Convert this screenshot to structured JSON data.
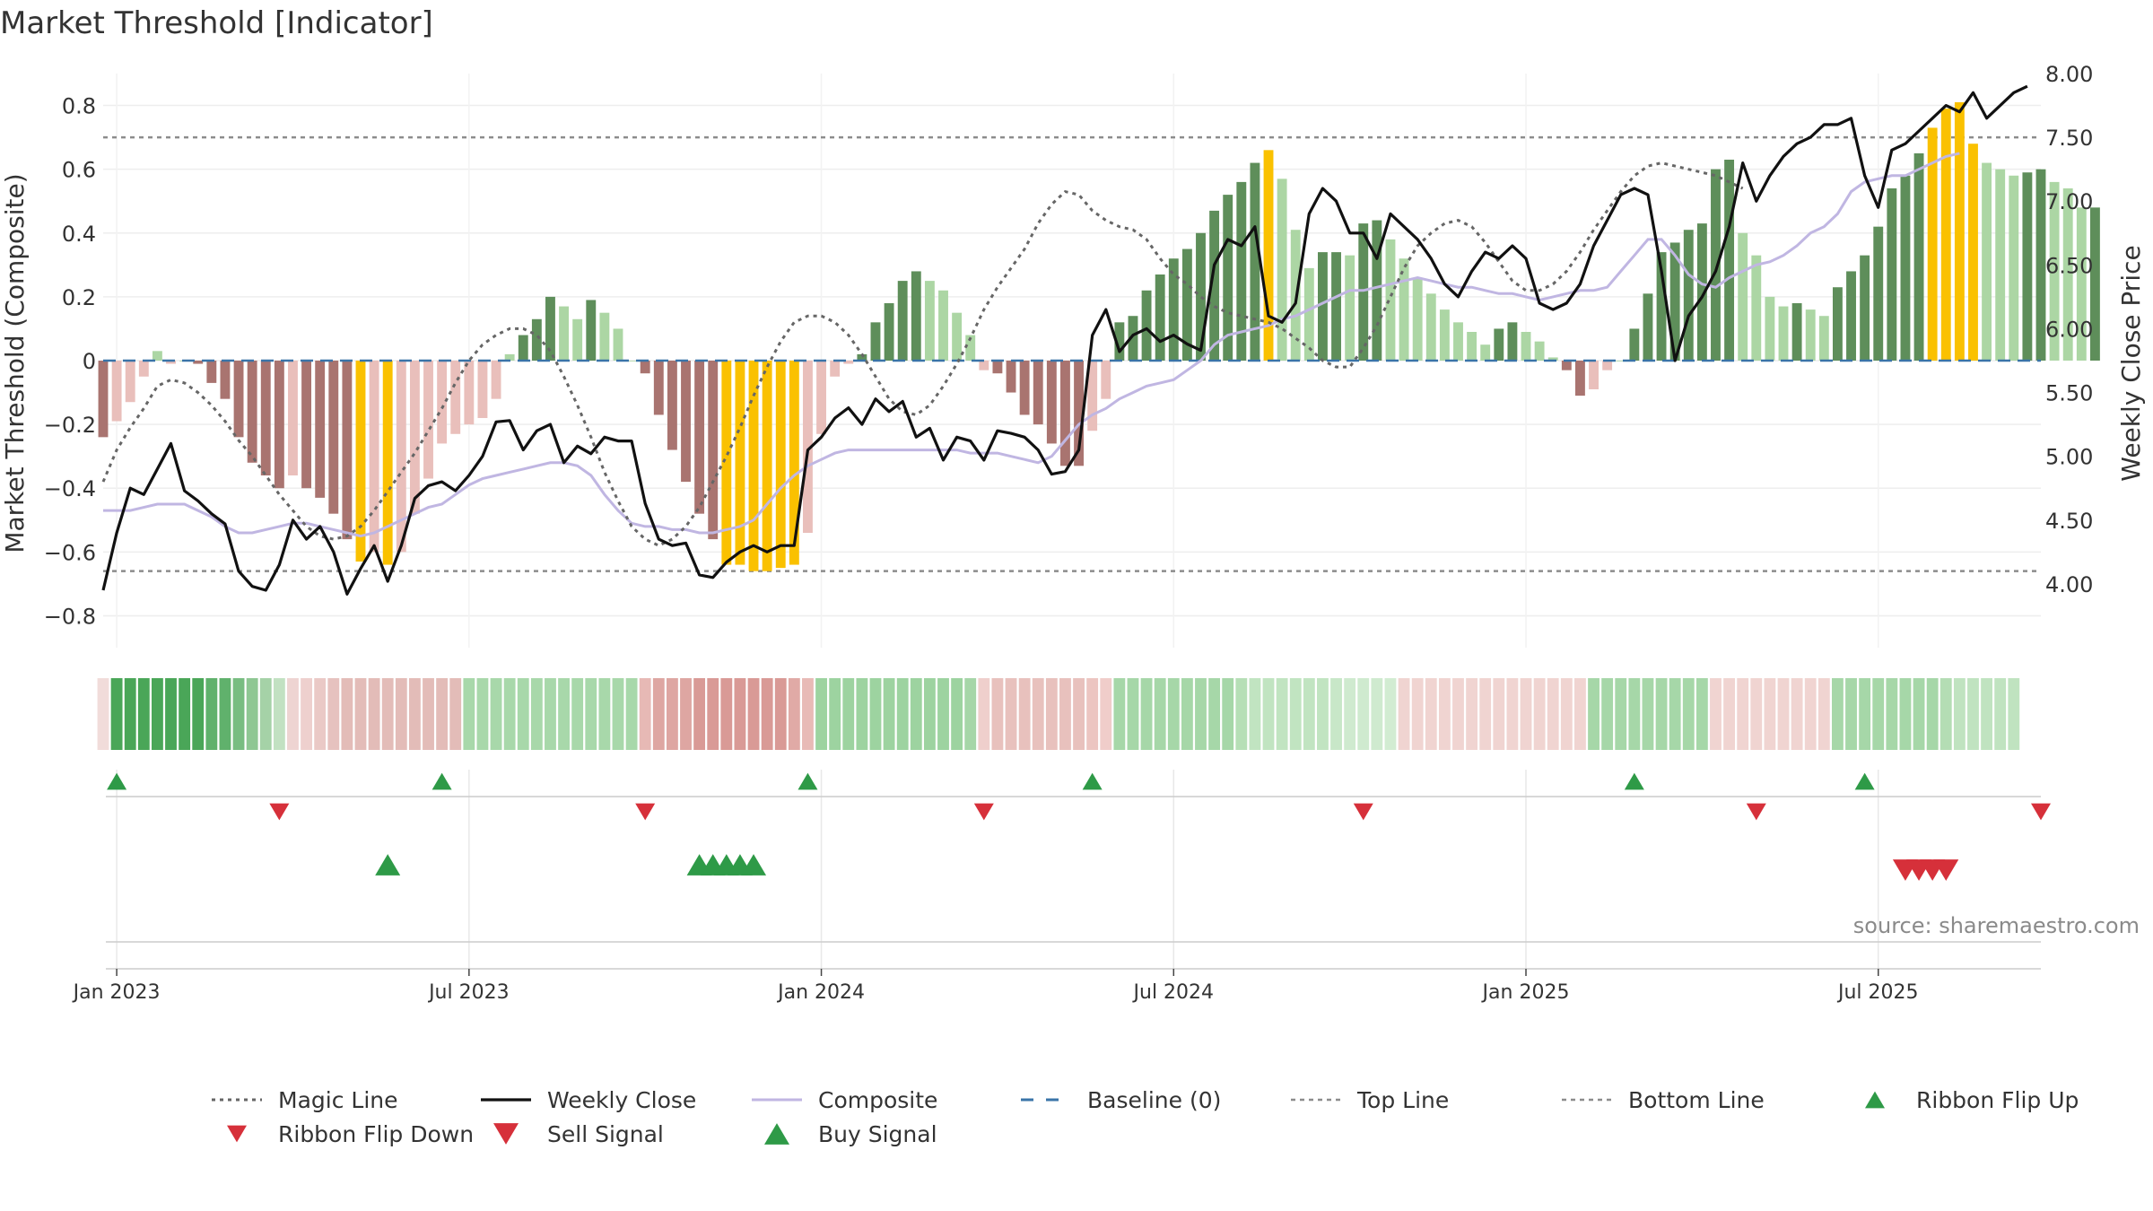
{
  "chart_data": {
    "type": "bar",
    "title": "Market Threshold [Indicator]",
    "ylabel_left": "Market Threshold (Composite)",
    "ylabel_right": "Weekly Close Price",
    "source": "source: sharemaestro.com",
    "ylim_left": [
      -0.9,
      0.9
    ],
    "ylim_right": [
      3.5,
      8.0
    ],
    "left_ticks": [
      {
        "v": 0.8,
        "label": "0.8"
      },
      {
        "v": 0.6,
        "label": "0.6"
      },
      {
        "v": 0.4,
        "label": "0.4"
      },
      {
        "v": 0.2,
        "label": "0.2"
      },
      {
        "v": 0,
        "label": "0"
      },
      {
        "v": -0.2,
        "label": "−0.2"
      },
      {
        "v": -0.4,
        "label": "−0.4"
      },
      {
        "v": -0.6,
        "label": "−0.6"
      },
      {
        "v": -0.8,
        "label": "−0.8"
      }
    ],
    "right_ticks": [
      {
        "v": 8.0,
        "label": "8.00"
      },
      {
        "v": 7.5,
        "label": "7.50"
      },
      {
        "v": 7.0,
        "label": "7.00"
      },
      {
        "v": 6.5,
        "label": "6.50"
      },
      {
        "v": 6.0,
        "label": "6.00"
      },
      {
        "v": 5.5,
        "label": "5.50"
      },
      {
        "v": 5.0,
        "label": "5.00"
      },
      {
        "v": 4.5,
        "label": "4.50"
      },
      {
        "v": 4.0,
        "label": "4.00"
      }
    ],
    "x_ticks": [
      {
        "week": 1,
        "label": "Jan 2023"
      },
      {
        "week": 27,
        "label": "Jul 2023"
      },
      {
        "week": 53,
        "label": "Jan 2024"
      },
      {
        "week": 79,
        "label": "Jul 2024"
      },
      {
        "week": 105,
        "label": "Jan 2025"
      },
      {
        "week": 131,
        "label": "Jul 2025"
      }
    ],
    "top_line": 0.7,
    "bottom_line": -0.66,
    "baseline": 0,
    "week_range": [
      0,
      143
    ],
    "composite_bars": [
      -0.24,
      -0.19,
      -0.13,
      -0.05,
      0.03,
      -0.01,
      0.0,
      -0.01,
      -0.07,
      -0.12,
      -0.24,
      -0.32,
      -0.36,
      -0.4,
      -0.36,
      -0.4,
      -0.43,
      -0.48,
      -0.56,
      -0.63,
      -0.6,
      -0.64,
      -0.6,
      -0.48,
      -0.37,
      -0.26,
      -0.23,
      -0.2,
      -0.18,
      -0.12,
      0.02,
      0.08,
      0.13,
      0.2,
      0.17,
      0.13,
      0.19,
      0.15,
      0.1,
      0.0,
      -0.04,
      -0.17,
      -0.28,
      -0.38,
      -0.48,
      -0.56,
      -0.64,
      -0.64,
      -0.66,
      -0.66,
      -0.65,
      -0.64,
      -0.54,
      -0.23,
      -0.05,
      -0.01,
      0.02,
      0.12,
      0.18,
      0.25,
      0.28,
      0.25,
      0.22,
      0.15,
      0.08,
      -0.03,
      -0.04,
      -0.1,
      -0.17,
      -0.2,
      -0.26,
      -0.33,
      -0.33,
      -0.22,
      -0.12,
      0.12,
      0.14,
      0.22,
      0.27,
      0.32,
      0.35,
      0.4,
      0.47,
      0.52,
      0.56,
      0.62,
      0.66,
      0.57,
      0.41,
      0.29,
      0.34,
      0.34,
      0.33,
      0.43,
      0.44,
      0.38,
      0.32,
      0.26,
      0.21,
      0.16,
      0.12,
      0.09,
      0.05,
      0.1,
      0.12,
      0.09,
      0.06,
      0.01,
      -0.03,
      -0.11,
      -0.09,
      -0.03,
      0.0,
      0.1,
      0.21,
      0.34,
      0.37,
      0.41,
      0.43,
      0.6,
      0.63,
      0.4,
      0.33,
      0.2,
      0.17,
      0.18,
      0.16,
      0.14,
      0.23,
      0.28,
      0.33,
      0.42,
      0.54,
      0.58,
      0.65,
      0.73,
      0.79,
      0.81,
      0.68,
      0.62,
      0.6,
      0.58,
      0.59,
      0.6,
      0.56,
      0.54,
      0.48,
      0.48
    ],
    "colors": {
      "pos_strong": "#5e8e5a",
      "pos_weak": "#acd6a4",
      "neg_strong": "#a97470",
      "neg_weak": "#e9bfbb",
      "extreme": "#fac100",
      "black": "#111111",
      "composite_line": "#c0b6e2",
      "magic": "#666666",
      "baseline": "#3a74a8",
      "buy": "#2e9a47",
      "sell": "#d6303a"
    },
    "ribbon_colors": [
      "#f1dcda",
      "#4aa658",
      "#4aa658",
      "#4aa658",
      "#4aa658",
      "#4aa658",
      "#4aa658",
      "#4aa658",
      "#60b16c",
      "#60b16c",
      "#78bd81",
      "#8ec793",
      "#a5d2a7",
      "#c2e1c2",
      "#eed4d2",
      "#eed0ce",
      "#eac9c6",
      "#e6c2bf",
      "#e3bcb8",
      "#e3bcb8",
      "#e3bcb8",
      "#e3bcb8",
      "#e3bcb8",
      "#e3bcb8",
      "#e3bcb8",
      "#e3bcb8",
      "#e3bcb8",
      "#a8d8aa",
      "#a8d8aa",
      "#a8d8aa",
      "#a8d8aa",
      "#a8d8aa",
      "#a8d8aa",
      "#a8d8aa",
      "#a8d8aa",
      "#a8d8aa",
      "#a8d8aa",
      "#a8d8aa",
      "#a8d8aa",
      "#a8d8aa",
      "#e7b9b5",
      "#dea6a2",
      "#dea6a2",
      "#dea6a2",
      "#d99a96",
      "#d99a96",
      "#d99a96",
      "#d99a96",
      "#d99a96",
      "#d99a96",
      "#d99a96",
      "#e0aaa6",
      "#e8bab6",
      "#9dd3a0",
      "#9dd3a0",
      "#9dd3a0",
      "#9dd3a0",
      "#9dd3a0",
      "#9dd3a0",
      "#9dd3a0",
      "#9dd3a0",
      "#9dd3a0",
      "#9dd3a0",
      "#9dd3a0",
      "#a6d6a8",
      "#efcfcc",
      "#e8c1bd",
      "#e8c1bd",
      "#e8c1bd",
      "#e8c1bd",
      "#e8c1bd",
      "#e8c1bd",
      "#e8c1bd",
      "#ecc5c1",
      "#f0cdca",
      "#a6d7a8",
      "#a6d7a8",
      "#a6d7a8",
      "#a6d7a8",
      "#a6d7a8",
      "#a6d7a8",
      "#a6d7a8",
      "#a6d7a8",
      "#a6d7a8",
      "#b6dfb6",
      "#c1e4c1",
      "#c1e4c1",
      "#c1e4c1",
      "#c1e4c1",
      "#c1e4c1",
      "#c1e4c1",
      "#c8e7c8",
      "#cfeacf",
      "#cfeacf",
      "#cfeacf",
      "#d2ecd2",
      "#f0d4d1",
      "#f0d4d1",
      "#f0d4d1",
      "#f0d4d1",
      "#f0d4d1",
      "#f0d4d1",
      "#f0d4d1",
      "#f0d4d1",
      "#f0d4d1",
      "#f0d4d1",
      "#f0d4d1",
      "#f0d4d1",
      "#f0d4d1",
      "#f0d4d1",
      "#a6d7a8",
      "#a6d7a8",
      "#a6d7a8",
      "#a6d7a8",
      "#a6d7a8",
      "#a6d7a8",
      "#a6d7a8",
      "#a6d7a8",
      "#a6d7a8",
      "#f0d4d1",
      "#f0d4d1",
      "#f0d4d1",
      "#f0d4d1",
      "#f0d4d1",
      "#f0d4d1",
      "#f0d4d1",
      "#f0d4d1",
      "#f0d4d1",
      "#a6d7a8",
      "#a6d7a8",
      "#a6d7a8",
      "#a6d7a8",
      "#a6d7a8",
      "#a6d7a8",
      "#a6d7a8",
      "#a6d7a8",
      "#b4ddb4",
      "#c0e3c0",
      "#c0e3c0",
      "#c0e3c0",
      "#c0e3c0",
      "#c0e3c0"
    ],
    "ribbon_flip_up": [
      1,
      25,
      52,
      73,
      113,
      130
    ],
    "ribbon_flip_down": [
      13,
      40,
      65,
      93,
      122,
      143
    ],
    "buy_signals": [
      21,
      44,
      45,
      46,
      47,
      48
    ],
    "sell_signals": [
      133,
      134,
      135,
      136
    ],
    "series": [
      {
        "name": "Weekly Close",
        "values": [
          3.95,
          4.4,
          4.75,
          4.7,
          4.9,
          5.1,
          4.73,
          4.65,
          4.55,
          4.47,
          4.1,
          3.98,
          3.95,
          4.15,
          4.5,
          4.35,
          4.45,
          4.25,
          3.92,
          4.12,
          4.3,
          4.02,
          4.3,
          4.67,
          4.77,
          4.8,
          4.73,
          4.85,
          5.0,
          5.27,
          5.28,
          5.05,
          5.2,
          5.25,
          4.95,
          5.08,
          5.02,
          5.15,
          5.12,
          5.12,
          4.63,
          4.35,
          4.3,
          4.32,
          4.07,
          4.05,
          4.17,
          4.25,
          4.3,
          4.25,
          4.3,
          4.3,
          5.05,
          5.15,
          5.3,
          5.38,
          5.25,
          5.45,
          5.35,
          5.43,
          5.15,
          5.22,
          4.97,
          5.15,
          5.12,
          4.97,
          5.2,
          5.18,
          5.15,
          5.05,
          4.86,
          4.88,
          5.05,
          5.95,
          6.15,
          5.82,
          5.95,
          6.0,
          5.9,
          5.95,
          5.88,
          5.83,
          6.5,
          6.7,
          6.65,
          6.8,
          6.1,
          6.05,
          6.2,
          6.9,
          7.1,
          7.0,
          6.75,
          6.75,
          6.55,
          6.9,
          6.8,
          6.7,
          6.55,
          6.35,
          6.25,
          6.45,
          6.6,
          6.55,
          6.65,
          6.55,
          6.2,
          6.15,
          6.2,
          6.35,
          6.65,
          6.85,
          7.05,
          7.1,
          7.05,
          6.45,
          5.75,
          6.1,
          6.25,
          6.45,
          6.8,
          7.3,
          7.0,
          7.2,
          7.35,
          7.45,
          7.5,
          7.6,
          7.6,
          7.65,
          7.2,
          6.95,
          7.4,
          7.45,
          7.55,
          7.65,
          7.75,
          7.7,
          7.85,
          7.65,
          7.75,
          7.85,
          7.9
        ]
      },
      {
        "name": "Composite",
        "values": [
          -0.47,
          -0.47,
          -0.47,
          -0.46,
          -0.45,
          -0.45,
          -0.45,
          -0.47,
          -0.49,
          -0.52,
          -0.54,
          -0.54,
          -0.53,
          -0.52,
          -0.51,
          -0.51,
          -0.52,
          -0.53,
          -0.54,
          -0.55,
          -0.54,
          -0.52,
          -0.5,
          -0.48,
          -0.46,
          -0.45,
          -0.42,
          -0.39,
          -0.37,
          -0.36,
          -0.35,
          -0.34,
          -0.33,
          -0.32,
          -0.32,
          -0.33,
          -0.36,
          -0.42,
          -0.47,
          -0.51,
          -0.52,
          -0.52,
          -0.53,
          -0.53,
          -0.54,
          -0.54,
          -0.53,
          -0.52,
          -0.5,
          -0.45,
          -0.4,
          -0.36,
          -0.33,
          -0.31,
          -0.29,
          -0.28,
          -0.28,
          -0.28,
          -0.28,
          -0.28,
          -0.28,
          -0.28,
          -0.28,
          -0.28,
          -0.29,
          -0.29,
          -0.29,
          -0.3,
          -0.31,
          -0.32,
          -0.3,
          -0.25,
          -0.2,
          -0.17,
          -0.15,
          -0.12,
          -0.1,
          -0.08,
          -0.07,
          -0.06,
          -0.03,
          0.0,
          0.05,
          0.08,
          0.09,
          0.1,
          0.11,
          0.13,
          0.14,
          0.16,
          0.18,
          0.2,
          0.22,
          0.22,
          0.23,
          0.24,
          0.25,
          0.26,
          0.25,
          0.24,
          0.23,
          0.23,
          0.22,
          0.21,
          0.21,
          0.2,
          0.19,
          0.2,
          0.21,
          0.22,
          0.22,
          0.23,
          0.28,
          0.33,
          0.38,
          0.38,
          0.33,
          0.27,
          0.24,
          0.23,
          0.26,
          0.28,
          0.3,
          0.31,
          0.33,
          0.36,
          0.4,
          0.42,
          0.46,
          0.53,
          0.56,
          0.57,
          0.58,
          0.58,
          0.6,
          0.62,
          0.64,
          0.65
        ]
      },
      {
        "name": "Magic Line",
        "values": [
          -0.38,
          -0.28,
          -0.21,
          -0.15,
          -0.08,
          -0.06,
          -0.07,
          -0.1,
          -0.14,
          -0.19,
          -0.25,
          -0.3,
          -0.36,
          -0.42,
          -0.47,
          -0.52,
          -0.55,
          -0.56,
          -0.55,
          -0.52,
          -0.47,
          -0.41,
          -0.35,
          -0.29,
          -0.22,
          -0.15,
          -0.07,
          0.0,
          0.05,
          0.08,
          0.1,
          0.1,
          0.08,
          0.03,
          -0.05,
          -0.14,
          -0.24,
          -0.35,
          -0.44,
          -0.52,
          -0.56,
          -0.58,
          -0.56,
          -0.52,
          -0.46,
          -0.38,
          -0.3,
          -0.21,
          -0.11,
          -0.02,
          0.06,
          0.12,
          0.14,
          0.14,
          0.12,
          0.08,
          0.02,
          -0.05,
          -0.12,
          -0.16,
          -0.17,
          -0.14,
          -0.08,
          -0.01,
          0.07,
          0.16,
          0.23,
          0.29,
          0.35,
          0.43,
          0.49,
          0.53,
          0.52,
          0.47,
          0.44,
          0.42,
          0.41,
          0.38,
          0.32,
          0.27,
          0.24,
          0.2,
          0.17,
          0.15,
          0.14,
          0.13,
          0.12,
          0.1,
          0.07,
          0.04,
          0.0,
          -0.02,
          -0.02,
          0.04,
          0.11,
          0.2,
          0.29,
          0.36,
          0.4,
          0.43,
          0.44,
          0.42,
          0.37,
          0.31,
          0.25,
          0.22,
          0.22,
          0.24,
          0.28,
          0.34,
          0.41,
          0.47,
          0.53,
          0.58,
          0.61,
          0.62,
          0.61,
          0.6,
          0.59,
          0.58,
          0.56,
          0.54
        ]
      }
    ],
    "legend": [
      {
        "key": "magic",
        "label": "Magic Line"
      },
      {
        "key": "close",
        "label": "Weekly Close"
      },
      {
        "key": "composite",
        "label": "Composite"
      },
      {
        "key": "baseline",
        "label": "Baseline (0)"
      },
      {
        "key": "top",
        "label": "Top Line"
      },
      {
        "key": "bottom",
        "label": "Bottom Line"
      },
      {
        "key": "flipup",
        "label": "Ribbon Flip Up"
      },
      {
        "key": "flipdown",
        "label": "Ribbon Flip Down"
      },
      {
        "key": "sell",
        "label": "Sell Signal"
      },
      {
        "key": "buy",
        "label": "Buy Signal"
      }
    ],
    "legend_placement": "bottom"
  }
}
